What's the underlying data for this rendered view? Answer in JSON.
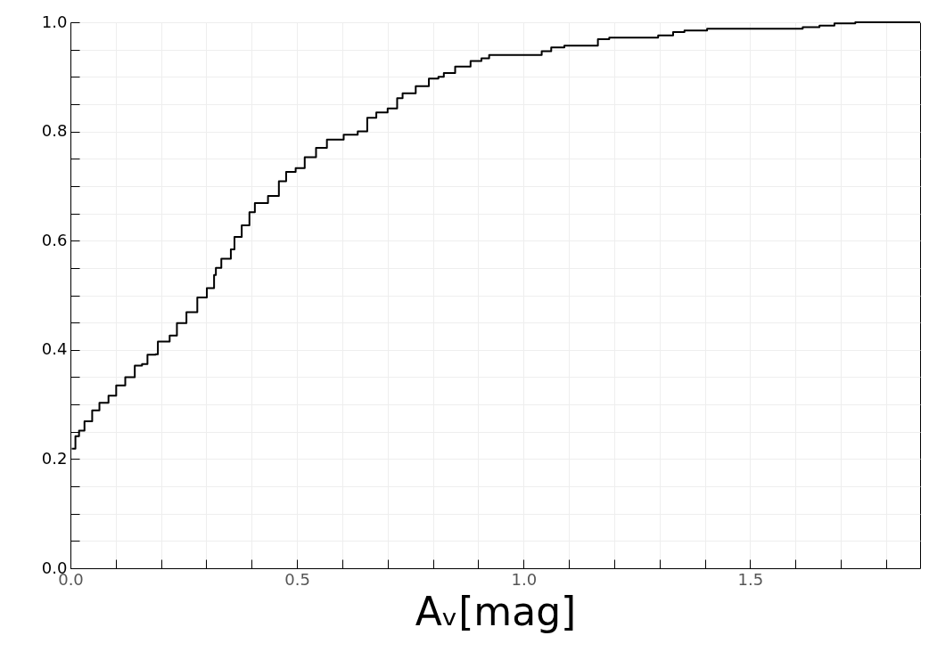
{
  "chart_data": {
    "type": "step",
    "xlabel": "Aᵥ[mag]",
    "xlim": [
      0,
      1.875
    ],
    "ylim": [
      0,
      1.0
    ],
    "xticks": [
      {
        "value": 0,
        "label": "0.0"
      },
      {
        "value": 0.1,
        "label": null
      },
      {
        "value": 0.2,
        "label": null
      },
      {
        "value": 0.3,
        "label": null
      },
      {
        "value": 0.4,
        "label": null
      },
      {
        "value": 0.5,
        "label": "0.5"
      },
      {
        "value": 0.6,
        "label": null
      },
      {
        "value": 0.7,
        "label": null
      },
      {
        "value": 0.8,
        "label": null
      },
      {
        "value": 0.9,
        "label": null
      },
      {
        "value": 1.0,
        "label": "1.0"
      },
      {
        "value": 1.1,
        "label": null
      },
      {
        "value": 1.2,
        "label": null
      },
      {
        "value": 1.3,
        "label": null
      },
      {
        "value": 1.4,
        "label": null
      },
      {
        "value": 1.5,
        "label": "1.5"
      },
      {
        "value": 1.6,
        "label": null
      },
      {
        "value": 1.7,
        "label": null
      },
      {
        "value": 1.8,
        "label": null
      }
    ],
    "yticks": [
      {
        "value": 0,
        "label": "0.0"
      },
      {
        "value": 0.05,
        "label": null
      },
      {
        "value": 0.1,
        "label": null
      },
      {
        "value": 0.15,
        "label": null
      },
      {
        "value": 0.2,
        "label": "0.2"
      },
      {
        "value": 0.25,
        "label": null
      },
      {
        "value": 0.3,
        "label": null
      },
      {
        "value": 0.35,
        "label": null
      },
      {
        "value": 0.4,
        "label": "0.4"
      },
      {
        "value": 0.45,
        "label": null
      },
      {
        "value": 0.5,
        "label": null
      },
      {
        "value": 0.55,
        "label": null
      },
      {
        "value": 0.6,
        "label": "0.6"
      },
      {
        "value": 0.65,
        "label": null
      },
      {
        "value": 0.7,
        "label": null
      },
      {
        "value": 0.75,
        "label": null
      },
      {
        "value": 0.8,
        "label": "0.8"
      },
      {
        "value": 0.85,
        "label": null
      },
      {
        "value": 0.9,
        "label": null
      },
      {
        "value": 0.95,
        "label": null
      },
      {
        "value": 1.0,
        "label": "1.0"
      }
    ],
    "grid": true,
    "series": [
      {
        "color": "#000000",
        "x": [
          0.003,
          0.011,
          0.019,
          0.031,
          0.048,
          0.064,
          0.084,
          0.101,
          0.121,
          0.142,
          0.158,
          0.17,
          0.188,
          0.193,
          0.219,
          0.235,
          0.256,
          0.28,
          0.301,
          0.317,
          0.321,
          0.333,
          0.354,
          0.362,
          0.378,
          0.395,
          0.407,
          0.436,
          0.46,
          0.476,
          0.497,
          0.517,
          0.542,
          0.566,
          0.603,
          0.634,
          0.655,
          0.675,
          0.7,
          0.721,
          0.733,
          0.762,
          0.791,
          0.812,
          0.824,
          0.849,
          0.883,
          0.907,
          0.924,
          1.04,
          1.061,
          1.09,
          1.164,
          1.189,
          1.297,
          1.33,
          1.355,
          1.405,
          1.616,
          1.653,
          1.686,
          1.732,
          1.875
        ],
        "values": [
          0.219,
          0.242,
          0.252,
          0.269,
          0.289,
          0.303,
          0.316,
          0.335,
          0.35,
          0.371,
          0.374,
          0.391,
          0.392,
          0.415,
          0.426,
          0.449,
          0.469,
          0.496,
          0.513,
          0.537,
          0.55,
          0.567,
          0.584,
          0.607,
          0.628,
          0.652,
          0.669,
          0.682,
          0.709,
          0.726,
          0.733,
          0.753,
          0.77,
          0.785,
          0.794,
          0.8,
          0.825,
          0.835,
          0.842,
          0.861,
          0.87,
          0.883,
          0.897,
          0.9,
          0.907,
          0.919,
          0.929,
          0.934,
          0.94,
          0.947,
          0.954,
          0.957,
          0.969,
          0.972,
          0.976,
          0.982,
          0.985,
          0.988,
          0.991,
          0.994,
          0.998,
          1.0,
          1.0
        ]
      }
    ]
  }
}
